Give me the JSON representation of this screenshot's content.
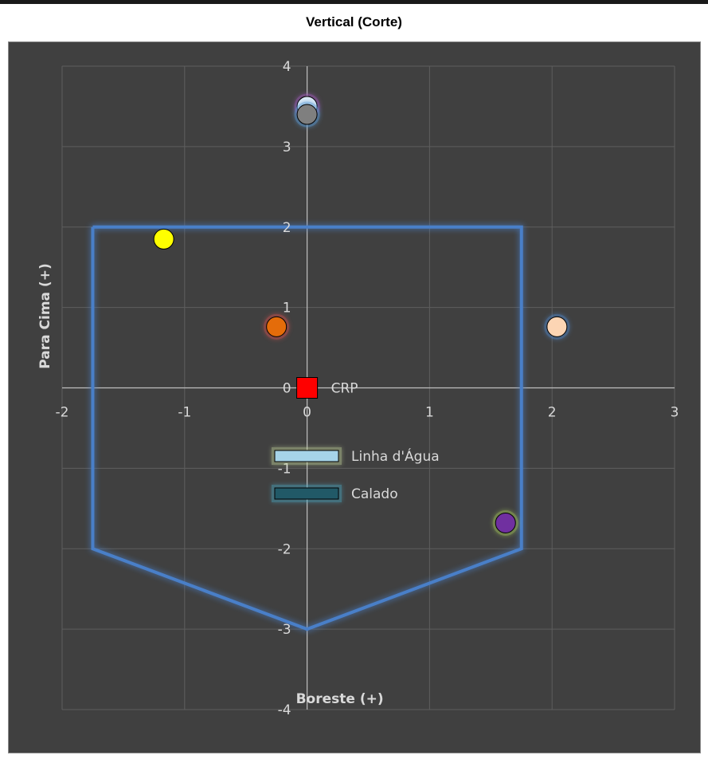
{
  "title": "Vertical (Corte)",
  "chart_data": {
    "type": "scatter",
    "title": "Vertical (Corte)",
    "xlabel": "Boreste (+)",
    "ylabel": "Para Cima (+)",
    "xlim": [
      -2,
      3
    ],
    "ylim": [
      -4,
      4
    ],
    "x_ticks": [
      "-2",
      "-1",
      "0",
      "1",
      "2",
      "3"
    ],
    "y_ticks": [
      "-4",
      "-3",
      "-2",
      "-1",
      "0",
      "1",
      "2",
      "3",
      "4"
    ],
    "x_tick_values": [
      -2,
      -1,
      0,
      1,
      2,
      3
    ],
    "y_tick_values": [
      -4,
      -3,
      -2,
      -1,
      0,
      1,
      2,
      3,
      4
    ],
    "grid": true,
    "hull_outline": {
      "color": "#4a7fc8",
      "points": [
        [
          -1.75,
          2
        ],
        [
          1.75,
          2
        ],
        [
          1.75,
          -2
        ],
        [
          0,
          -3
        ],
        [
          -1.75,
          -2
        ],
        [
          -1.75,
          2
        ]
      ]
    },
    "points": [
      {
        "x": 0,
        "y": 0,
        "marker": "square",
        "color": "#ff0000",
        "label": "CRP"
      },
      {
        "x": 0,
        "y": 3.5,
        "marker": "circle",
        "color": "#ddeaf6",
        "glow": "#9b59b6"
      },
      {
        "x": 0,
        "y": 3.4,
        "marker": "circle",
        "color": "#7f7f7f",
        "glow": "#5b9bd5"
      },
      {
        "x": -1.17,
        "y": 1.85,
        "marker": "circle",
        "color": "#ffff00",
        "glow": ""
      },
      {
        "x": -0.25,
        "y": 0.76,
        "marker": "circle",
        "color": "#e46c0a",
        "glow": "#c0504d"
      },
      {
        "x": 2.04,
        "y": 0.76,
        "marker": "circle",
        "color": "#fcd5b4",
        "glow": "#4f81bd"
      },
      {
        "x": 1.62,
        "y": -1.68,
        "marker": "circle",
        "color": "#7030a0",
        "glow": "#9bbb59"
      }
    ],
    "legend": [
      {
        "label": "Linha d'Água",
        "color": "#a6d4e8",
        "glow": "#c3d69b"
      },
      {
        "label": "Calado",
        "color": "#215967",
        "glow": "#4bacc6"
      }
    ],
    "legend_position": "center"
  }
}
